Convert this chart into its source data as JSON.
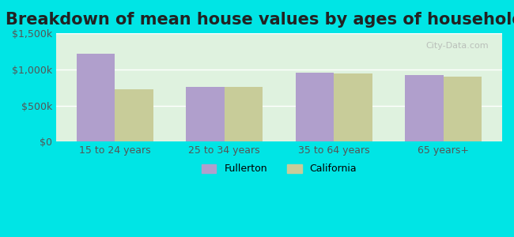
{
  "title": "Breakdown of mean house values by ages of householders",
  "categories": [
    "15 to 24 years",
    "25 to 34 years",
    "35 to 64 years",
    "65 years+"
  ],
  "fullerton_values": [
    1220000,
    760000,
    960000,
    920000
  ],
  "california_values": [
    730000,
    755000,
    940000,
    900000
  ],
  "fullerton_color": "#b09fcc",
  "california_color": "#c8cc99",
  "background_color": "#00e5e5",
  "plot_bg_color": "#dff2df",
  "ylim": [
    0,
    1500000
  ],
  "yticks": [
    0,
    500000,
    1000000,
    1500000
  ],
  "ytick_labels": [
    "$0",
    "$500k",
    "$1,000k",
    "$1,500k"
  ],
  "title_fontsize": 15,
  "legend_labels": [
    "Fullerton",
    "California"
  ],
  "watermark": "City-Data.com",
  "bar_width": 0.35
}
